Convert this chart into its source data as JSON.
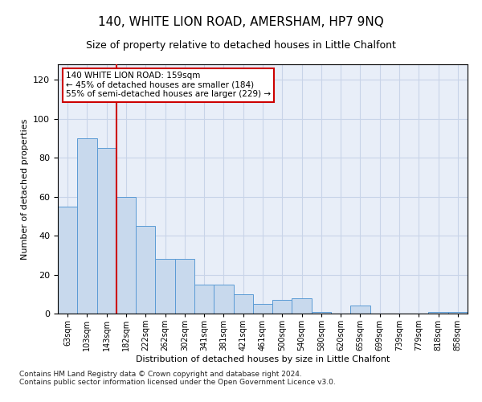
{
  "title": "140, WHITE LION ROAD, AMERSHAM, HP7 9NQ",
  "subtitle": "Size of property relative to detached houses in Little Chalfont",
  "xlabel": "Distribution of detached houses by size in Little Chalfont",
  "ylabel": "Number of detached properties",
  "footnote1": "Contains HM Land Registry data © Crown copyright and database right 2024.",
  "footnote2": "Contains public sector information licensed under the Open Government Licence v3.0.",
  "bar_color": "#c8d9ed",
  "bar_edge_color": "#5b9bd5",
  "vline_color": "#cc0000",
  "annotation_line1": "140 WHITE LION ROAD: 159sqm",
  "annotation_line2": "← 45% of detached houses are smaller (184)",
  "annotation_line3": "55% of semi-detached houses are larger (229) →",
  "annotation_box_color": "#ffffff",
  "annotation_box_edge": "#cc0000",
  "categories": [
    "63sqm",
    "103sqm",
    "143sqm",
    "182sqm",
    "222sqm",
    "262sqm",
    "302sqm",
    "341sqm",
    "381sqm",
    "421sqm",
    "461sqm",
    "500sqm",
    "540sqm",
    "580sqm",
    "620sqm",
    "659sqm",
    "699sqm",
    "739sqm",
    "779sqm",
    "818sqm",
    "858sqm"
  ],
  "values": [
    55,
    90,
    85,
    60,
    45,
    28,
    28,
    15,
    15,
    10,
    5,
    7,
    8,
    1,
    0,
    4,
    0,
    0,
    0,
    1,
    1
  ],
  "ylim": [
    0,
    128
  ],
  "yticks": [
    0,
    20,
    40,
    60,
    80,
    100,
    120
  ],
  "grid_color": "#c8d4e8",
  "background_color": "#e8eef8",
  "vline_x": 2.5
}
